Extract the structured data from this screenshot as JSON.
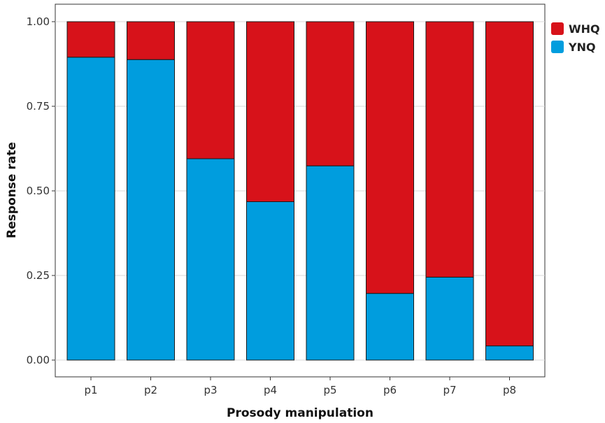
{
  "chart_data": {
    "type": "bar",
    "stacked": true,
    "categories": [
      "p1",
      "p2",
      "p3",
      "p4",
      "p5",
      "p6",
      "p7",
      "p8"
    ],
    "series": [
      {
        "name": "YNQ",
        "values": [
          0.895,
          0.888,
          0.595,
          0.468,
          0.574,
          0.197,
          0.245,
          0.042
        ],
        "color": "#009DDE"
      },
      {
        "name": "WHQ",
        "values": [
          0.105,
          0.112,
          0.405,
          0.532,
          0.426,
          0.803,
          0.755,
          0.958
        ],
        "color": "#D7121A"
      }
    ],
    "xlabel": "Prosody manipulation",
    "ylabel": "Response rate",
    "ylim": [
      0,
      1
    ],
    "yticks": [
      0,
      0.25,
      0.5,
      0.75,
      1
    ],
    "ytick_labels": [
      "0.00",
      "0.25",
      "0.50",
      "0.75",
      "1.00"
    ],
    "grid": true,
    "legend_position": "right",
    "legend_order": [
      "WHQ",
      "YNQ"
    ]
  }
}
